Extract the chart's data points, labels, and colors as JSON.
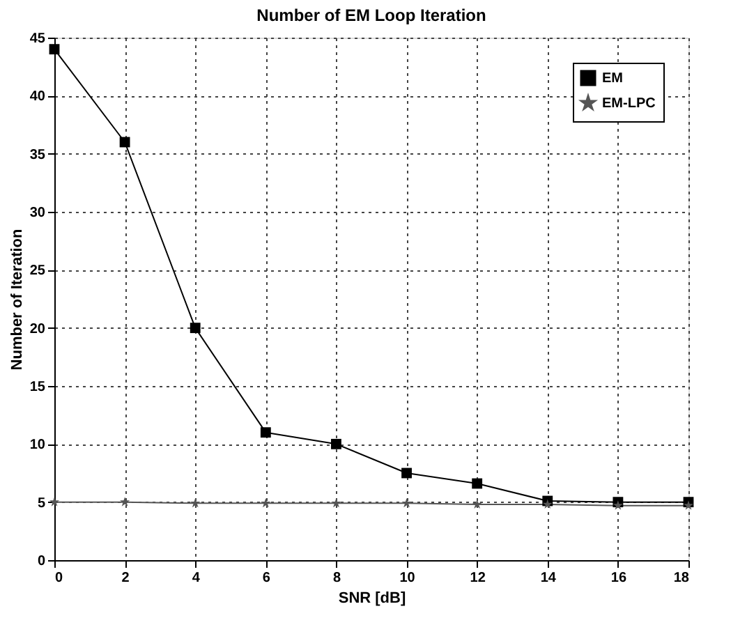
{
  "chart_data": {
    "type": "line",
    "title": "Number of EM Loop Iteration",
    "xlabel": "SNR [dB]",
    "ylabel": "Number of Iteration",
    "x": [
      0,
      2,
      4,
      6,
      8,
      10,
      12,
      14,
      16,
      18
    ],
    "series": [
      {
        "name": "EM",
        "color": "#000000",
        "marker": "square",
        "values": [
          44,
          36,
          20,
          11,
          10,
          7.5,
          6.6,
          5.1,
          5,
          5
        ]
      },
      {
        "name": "EM-LPC",
        "color": "#555555",
        "marker": "star",
        "values": [
          5,
          5,
          4.9,
          4.9,
          4.9,
          4.9,
          4.8,
          4.8,
          4.7,
          4.7
        ]
      }
    ],
    "xlim": [
      0,
      18
    ],
    "xticks": [
      0,
      2,
      4,
      6,
      8,
      10,
      12,
      14,
      16,
      18
    ],
    "ylim": [
      0,
      45
    ],
    "yticks": [
      0,
      5,
      10,
      15,
      20,
      25,
      30,
      35,
      40,
      45
    ],
    "grid": true,
    "legend": "top right",
    "line_style": "solid"
  }
}
